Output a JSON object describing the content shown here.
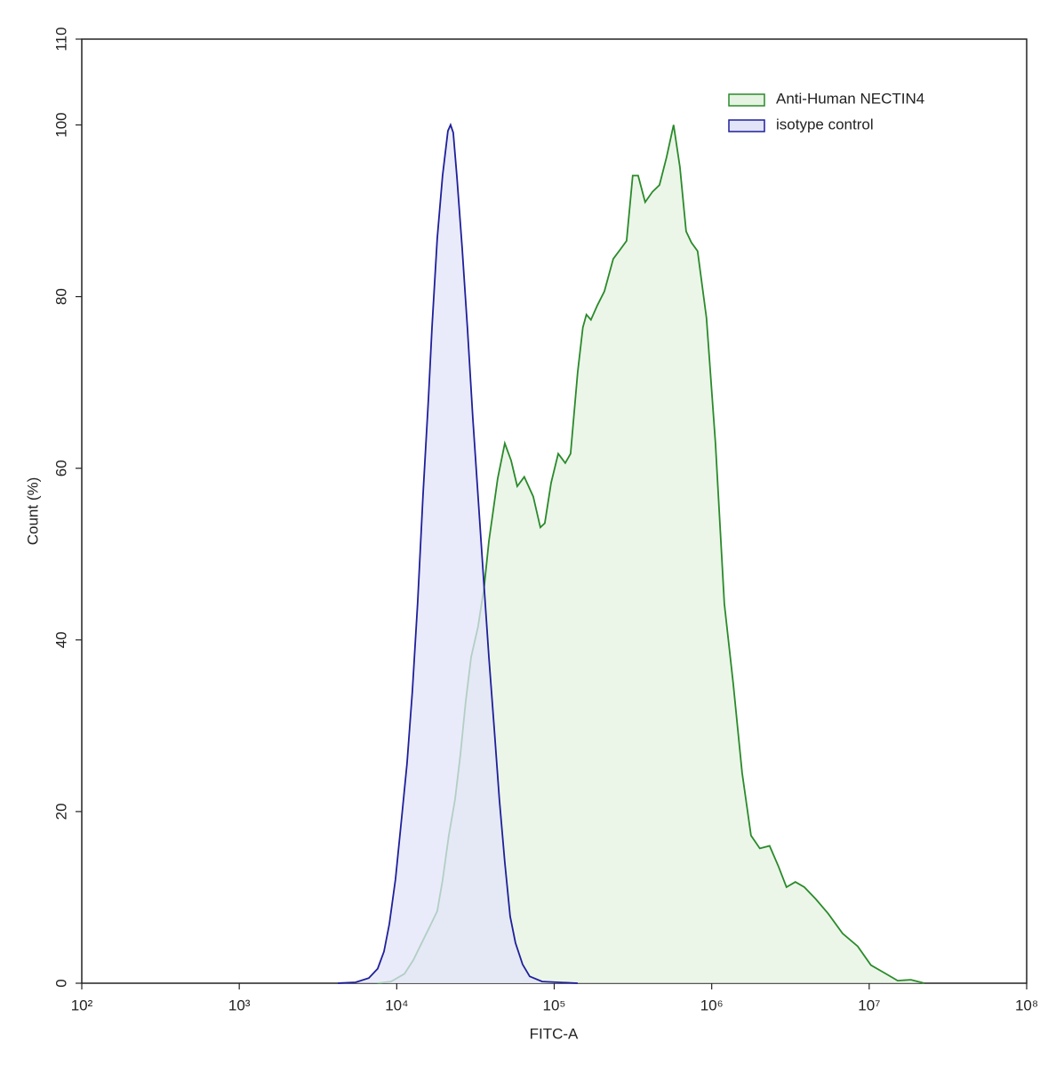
{
  "chart_data": {
    "type": "histogram-overlay",
    "x_label": "FITC-A",
    "y_label": "Count  (%)",
    "xscale": "log",
    "xlim": [
      100,
      100000000
    ],
    "xticks": [
      {
        "value": 100,
        "label": "10²"
      },
      {
        "value": 1000,
        "label": "10³"
      },
      {
        "value": 10000,
        "label": "10⁴"
      },
      {
        "value": 100000,
        "label": "10⁵"
      },
      {
        "value": 1000000,
        "label": "10⁶"
      },
      {
        "value": 10000000,
        "label": "10⁷"
      },
      {
        "value": 100000000,
        "label": "10⁸"
      }
    ],
    "ylim": [
      0,
      110
    ],
    "yticks": [
      0,
      20,
      40,
      60,
      80,
      100,
      110
    ],
    "legend": "upper right",
    "series": [
      {
        "name": "Anti-Human NECTIN4",
        "color": "#2a8a2a",
        "fill": "#e4f3e2",
        "x": [
          7500,
          9200,
          11190,
          12740,
          14490,
          16510,
          18080,
          19550,
          21420,
          23440,
          25350,
          27420,
          29650,
          32890,
          35970,
          38460,
          41020,
          43750,
          48530,
          53210,
          58210,
          64570,
          73620,
          81660,
          87100,
          95500,
          106000,
          117500,
          127000,
          141000,
          152000,
          160000,
          171000,
          188000,
          208000,
          237000,
          263000,
          288000,
          315000,
          341000,
          378000,
          420000,
          466000,
          516000,
          573000,
          628000,
          688000,
          743000,
          814000,
          927000,
          1057000,
          1203000,
          1370000,
          1560000,
          1776000,
          2022000,
          2333000,
          2656000,
          2985000,
          3401000,
          3873000,
          4585000,
          5495000,
          6773000,
          8450000,
          10260000,
          12480000,
          15170000,
          18420000,
          22390000
        ],
        "values": [
          0,
          0.2,
          1.1,
          2.7,
          4.8,
          6.9,
          8.4,
          12,
          17.2,
          21.4,
          26.6,
          32.8,
          38,
          41.6,
          46.3,
          51.5,
          55.1,
          58.8,
          62.9,
          60.9,
          57.9,
          59,
          56.7,
          53.1,
          53.6,
          58.3,
          61.7,
          60.6,
          61.7,
          71.2,
          76.4,
          77.9,
          77.3,
          79,
          80.6,
          84.4,
          85.5,
          86.5,
          94.1,
          94.1,
          91,
          92.2,
          93,
          96.2,
          100,
          95.1,
          87.6,
          86.3,
          85.3,
          77.5,
          62.9,
          44.2,
          34.9,
          24.5,
          17.2,
          15.7,
          16,
          13.6,
          11.2,
          11.8,
          11.2,
          9.8,
          8.1,
          5.8,
          4.3,
          2.1,
          1.2,
          0.3,
          0.4,
          0
        ]
      },
      {
        "name": "isotype control",
        "color": "#1f1f9a",
        "fill": "#e2e4f8",
        "x": [
          4220,
          5470,
          6650,
          7570,
          8300,
          8970,
          9820,
          10760,
          11620,
          12560,
          13580,
          14690,
          15890,
          16750,
          18080,
          19550,
          21140,
          21980,
          22860,
          24100,
          26020,
          28120,
          30410,
          32890,
          35560,
          38460,
          41590,
          44870,
          48530,
          52480,
          56750,
          62950,
          69820,
          83750,
          140900
        ],
        "values": [
          0,
          0.1,
          0.6,
          1.7,
          3.7,
          6.9,
          12.1,
          19.4,
          25.6,
          34,
          44.4,
          56.9,
          68.1,
          76.4,
          86.8,
          94.1,
          99.3,
          100,
          99.1,
          94,
          85.7,
          76.3,
          65.9,
          56.6,
          47.3,
          38,
          29.7,
          21.4,
          14.1,
          7.8,
          4.7,
          2.2,
          0.8,
          0.2,
          0
        ]
      }
    ]
  }
}
